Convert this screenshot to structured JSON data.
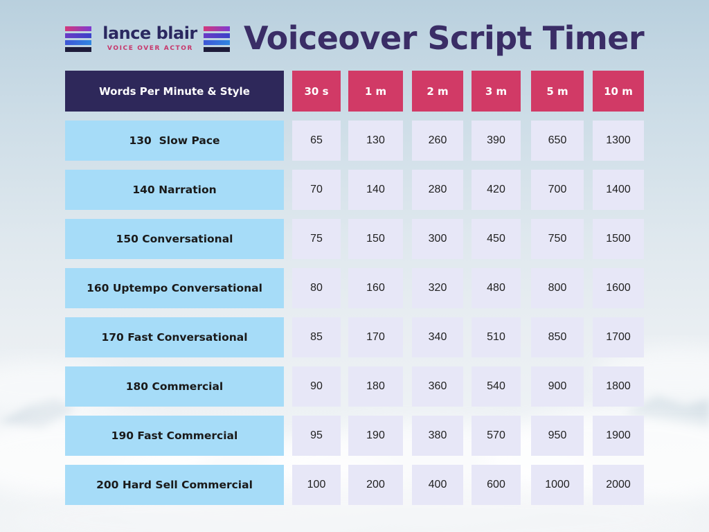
{
  "logo": {
    "name": "lance blair",
    "subtitle": "VOICE OVER ACTOR"
  },
  "title": "Voiceover Script Timer",
  "table": {
    "header_label": "Words Per Minute & Style",
    "columns": [
      "30 s",
      "1 m",
      "2 m",
      "3 m",
      "5 m",
      "10 m"
    ],
    "rows": [
      {
        "label": "130  Slow Pace",
        "values": [
          "65",
          "130",
          "260",
          "390",
          "650",
          "1300"
        ]
      },
      {
        "label": "140 Narration",
        "values": [
          "70",
          "140",
          "280",
          "420",
          "700",
          "1400"
        ]
      },
      {
        "label": "150 Conversational",
        "values": [
          "75",
          "150",
          "300",
          "450",
          "750",
          "1500"
        ]
      },
      {
        "label": "160 Uptempo Conversational",
        "values": [
          "80",
          "160",
          "320",
          "480",
          "800",
          "1600"
        ]
      },
      {
        "label": "170 Fast Conversational",
        "values": [
          "85",
          "170",
          "340",
          "510",
          "850",
          "1700"
        ]
      },
      {
        "label": "180 Commercial",
        "values": [
          "90",
          "180",
          "360",
          "540",
          "900",
          "1800"
        ]
      },
      {
        "label": "190 Fast Commercial",
        "values": [
          "95",
          "190",
          "380",
          "570",
          "950",
          "1900"
        ]
      },
      {
        "label": "200 Hard Sell Commercial",
        "values": [
          "100",
          "200",
          "400",
          "600",
          "1000",
          "2000"
        ]
      }
    ]
  },
  "colors": {
    "title": "#3a2d66",
    "header_style_bg": "#2e285a",
    "header_col_bg": "#d13a66",
    "row_label_bg": "#a6dcf8",
    "value_bg": "#e7e7f7"
  }
}
